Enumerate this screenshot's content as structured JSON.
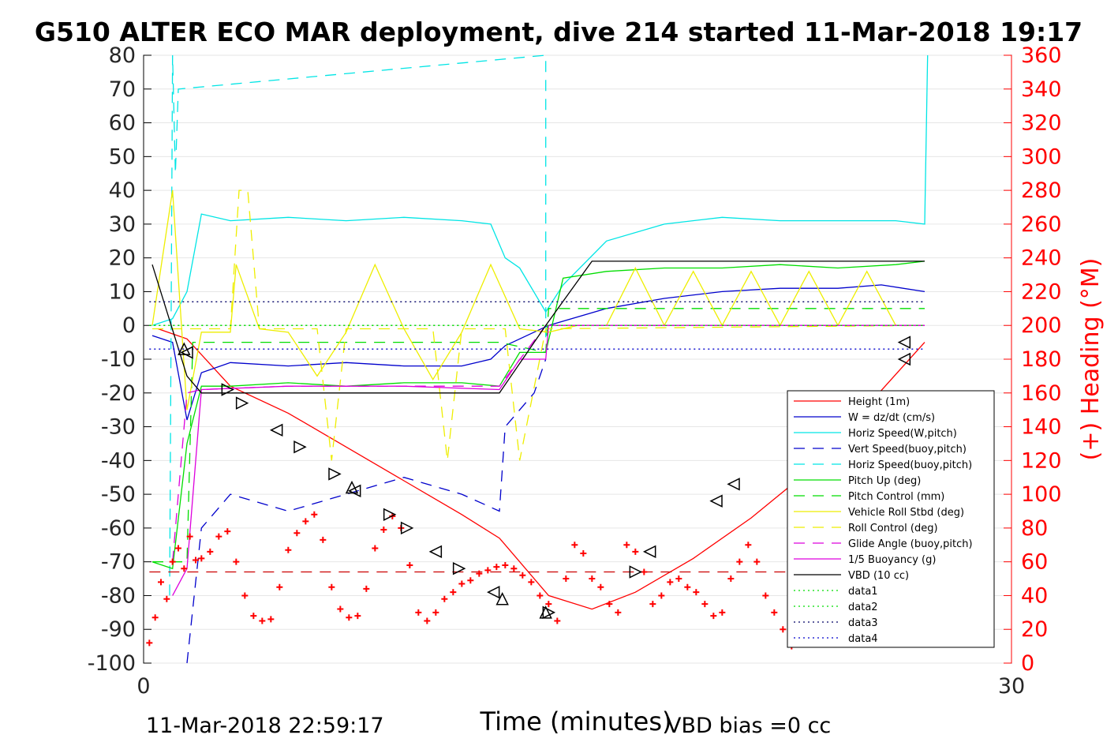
{
  "chart_data": {
    "type": "line",
    "title": "G510 ALTER ECO MAR deployment, dive 214 started 11-Mar-2018 19:17",
    "xlabel": "Time (minutes)",
    "ylabel": "",
    "ylabel_right": "(+) Heading (°M)",
    "xlim": [
      0,
      30
    ],
    "ylim": [
      -100,
      80
    ],
    "ylim_right": [
      0,
      360
    ],
    "x_ticks": [
      "0",
      "30"
    ],
    "y_ticks": [
      "80",
      "70",
      "60",
      "50",
      "40",
      "30",
      "20",
      "10",
      "0",
      "-10",
      "-20",
      "-30",
      "-40",
      "-50",
      "-60",
      "-70",
      "-80",
      "-90",
      "-100"
    ],
    "y_right_ticks": [
      "360",
      "340",
      "320",
      "300",
      "280",
      "260",
      "240",
      "220",
      "200",
      "180",
      "160",
      "140",
      "120",
      "100",
      "80",
      "60",
      "40",
      "20",
      "0"
    ],
    "grid": true,
    "legend_position": "bottom-right",
    "footer_left": "11-Mar-2018 22:59:17",
    "footer_right": "VBD bias =0 cc",
    "legend": [
      {
        "label": "Height (1m)",
        "color": "#ff0000",
        "style": "solid"
      },
      {
        "label": "W = dz/dt (cm/s)",
        "color": "#0000cc",
        "style": "solid"
      },
      {
        "label": "Horiz Speed(W,pitch)",
        "color": "#00e5e5",
        "style": "solid"
      },
      {
        "label": "Vert Speed(buoy,pitch)",
        "color": "#0000cc",
        "style": "dashed"
      },
      {
        "label": "Horiz Speed(buoy,pitch)",
        "color": "#00e5e5",
        "style": "dashed"
      },
      {
        "label": "Pitch Up (deg)",
        "color": "#00dd00",
        "style": "solid"
      },
      {
        "label": "Pitch Control (mm)",
        "color": "#00dd00",
        "style": "dashed"
      },
      {
        "label": "Vehicle Roll Stbd (deg)",
        "color": "#eeee00",
        "style": "solid"
      },
      {
        "label": "Roll Control (deg)",
        "color": "#eeee00",
        "style": "dashed"
      },
      {
        "label": "Glide Angle (buoy,pitch)",
        "color": "#dd00dd",
        "style": "dashed"
      },
      {
        "label": "1/5 Buoyancy (g)",
        "color": "#dd00dd",
        "style": "solid"
      },
      {
        "label": "VBD (10 cc)",
        "color": "#000000",
        "style": "solid"
      },
      {
        "label": "data1",
        "color": "#00dd00",
        "style": "dotted"
      },
      {
        "label": "data2",
        "color": "#00dd00",
        "style": "dotted"
      },
      {
        "label": "data3",
        "color": "#000066",
        "style": "dotted"
      },
      {
        "label": "data4",
        "color": "#0000cc",
        "style": "dotted"
      }
    ],
    "series": [
      {
        "name": "Height (1m)",
        "x": [
          0.5,
          1.5,
          3,
          5,
          7,
          9,
          11,
          12.3,
          14,
          15.5,
          17,
          19,
          21,
          23,
          25,
          27
        ],
        "y": [
          -1,
          -4,
          -18,
          -26,
          -36,
          -46,
          -56,
          -63,
          -80,
          -84,
          -79,
          -69,
          -57,
          -43,
          -24,
          -5
        ]
      },
      {
        "name": "W = dz/dt (cm/s)",
        "x": [
          0.3,
          1,
          1.5,
          2,
          3,
          5,
          7,
          9,
          11,
          12,
          12.5,
          13,
          14,
          16,
          18,
          20,
          22,
          24,
          25.5,
          27
        ],
        "y": [
          -3,
          -5,
          -28,
          -14,
          -11,
          -12,
          -11,
          -12,
          -12,
          -10,
          -6,
          -4,
          0,
          5,
          8,
          10,
          11,
          11,
          12,
          10
        ]
      },
      {
        "name": "Horiz Speed(W,pitch)",
        "x": [
          0.3,
          1,
          1.5,
          2,
          3,
          5,
          7,
          9,
          11,
          12,
          12.5,
          13,
          13.9,
          14.5,
          16,
          18,
          20,
          22,
          24,
          26,
          27,
          27.1
        ],
        "y": [
          0,
          2,
          10,
          33,
          31,
          32,
          31,
          32,
          31,
          30,
          20,
          17,
          4,
          12,
          25,
          30,
          32,
          31,
          31,
          31,
          30,
          80
        ]
      },
      {
        "name": "Vert Speed(buoy,pitch)",
        "x": [
          1.5,
          2,
          3,
          5,
          7,
          9,
          11,
          12.3,
          12.5,
          13.5,
          13.9
        ],
        "y": [
          -100,
          -60,
          -50,
          -55,
          -50,
          -45,
          -50,
          -55,
          -30,
          -20,
          -10
        ]
      },
      {
        "name": "Horiz Speed(buoy,pitch)",
        "x": [
          0.9,
          1.0,
          1.1,
          1.2,
          13.9,
          13.9
        ],
        "y": [
          -80,
          80,
          45,
          70,
          80,
          -5
        ]
      },
      {
        "name": "Pitch Up (deg)",
        "x": [
          0.3,
          1,
          1.5,
          2,
          3,
          5,
          7,
          9,
          11,
          12.3,
          13,
          13.9,
          14.5,
          16,
          18,
          20,
          22,
          24,
          26,
          27
        ],
        "y": [
          -70,
          -72,
          -35,
          -18,
          -18,
          -17,
          -18,
          -17,
          -17,
          -18,
          -8,
          -8,
          14,
          16,
          17,
          17,
          18,
          17,
          18,
          19
        ]
      },
      {
        "name": "Pitch Control (mm)",
        "x": [
          0.3,
          1.5,
          1.7,
          3,
          12.3,
          13.9,
          14,
          27
        ],
        "y": [
          -70,
          -70,
          -5,
          -5,
          -5,
          -8,
          5,
          5
        ]
      },
      {
        "name": "Vehicle Roll Stbd (deg)",
        "x": [
          0.3,
          1,
          1.5,
          2,
          2.7,
          3,
          3.2,
          4,
          5,
          6,
          7,
          8,
          9,
          10,
          11,
          12,
          13,
          14,
          15,
          16,
          17,
          18,
          19,
          20,
          21,
          22,
          23,
          24,
          25,
          26,
          27
        ],
        "y": [
          0,
          40,
          -25,
          -2,
          -2,
          -2,
          18,
          -1,
          -2,
          -15,
          -2,
          18,
          -1,
          -16,
          -2,
          18,
          -1,
          -2,
          0,
          0,
          17,
          0,
          16,
          0,
          16,
          0,
          16,
          0,
          16,
          0,
          0
        ]
      },
      {
        "name": "Roll Control (deg)",
        "x": [
          0.3,
          3,
          3.3,
          3.6,
          4,
          6,
          6.5,
          7,
          10,
          10.5,
          11,
          12.5,
          13,
          13.9,
          27
        ],
        "y": [
          -1,
          -1,
          40,
          40,
          -1,
          -1,
          -40,
          -1,
          -1,
          -40,
          -1,
          -1,
          -40,
          -1,
          0
        ]
      },
      {
        "name": "Glide Angle (buoy,pitch)",
        "x": [
          1,
          1.5,
          2,
          5,
          9,
          12.3,
          13.9,
          27
        ],
        "y": [
          -70,
          -20,
          -19,
          -18,
          -18,
          -18,
          0,
          0
        ]
      },
      {
        "name": "1/5 Buoyancy (g)",
        "x": [
          1,
          1.5,
          2,
          5,
          9,
          12.3,
          13,
          13.9,
          14,
          27
        ],
        "y": [
          -80,
          -72,
          -19,
          -18,
          -18,
          -19,
          -10,
          -10,
          0,
          0
        ]
      },
      {
        "name": "VBD (10 cc)",
        "x": [
          0.3,
          1.5,
          2,
          5,
          12.3,
          13.9,
          15.5,
          27
        ],
        "y": [
          18,
          -15,
          -20,
          -20,
          -20,
          0,
          19,
          19
        ]
      },
      {
        "name": "data1",
        "x": [
          0.2,
          27
        ],
        "y": [
          0,
          0
        ]
      },
      {
        "name": "data2",
        "x": [
          0.2,
          27
        ],
        "y": [
          0,
          0
        ]
      },
      {
        "name": "data3",
        "x": [
          0.2,
          27
        ],
        "y": [
          7,
          7
        ]
      },
      {
        "name": "data4",
        "x": [
          0.2,
          27
        ],
        "y": [
          -7,
          -7
        ]
      }
    ],
    "heading_markers": {
      "name": "(+) Heading (°M)",
      "color": "#ff0000",
      "x": [
        0.2,
        0.4,
        0.6,
        0.8,
        1.0,
        1.2,
        1.4,
        1.6,
        1.8,
        2,
        2.3,
        2.6,
        2.9,
        3.2,
        3.5,
        3.8,
        4.1,
        4.4,
        4.7,
        5.0,
        5.3,
        5.6,
        5.9,
        6.2,
        6.5,
        6.8,
        7.1,
        7.4,
        7.7,
        8.0,
        8.3,
        8.6,
        8.9,
        9.2,
        9.5,
        9.8,
        10.1,
        10.4,
        10.7,
        11.0,
        11.3,
        11.6,
        11.9,
        12.2,
        12.5,
        12.8,
        13.1,
        13.4,
        13.7,
        14.0,
        14.3,
        14.6,
        14.9,
        15.2,
        15.5,
        15.8,
        16.1,
        16.4,
        16.7,
        17.0,
        17.3,
        17.6,
        17.9,
        18.2,
        18.5,
        18.8,
        19.1,
        19.4,
        19.7,
        20.0,
        20.3,
        20.6,
        20.9,
        21.2,
        21.5,
        21.8,
        22.1,
        22.4
      ],
      "y": [
        12,
        27,
        48,
        38,
        60,
        68,
        56,
        75,
        61,
        62,
        66,
        75,
        78,
        60,
        40,
        28,
        25,
        26,
        45,
        67,
        77,
        84,
        88,
        73,
        45,
        32,
        27,
        28,
        44,
        68,
        79,
        87,
        80,
        58,
        30,
        25,
        30,
        38,
        42,
        47,
        49,
        53,
        55,
        57,
        58,
        56,
        52,
        48,
        40,
        35,
        25,
        50,
        70,
        65,
        50,
        45,
        35,
        30,
        70,
        66,
        54,
        35,
        40,
        48,
        50,
        45,
        42,
        35,
        28,
        30,
        50,
        60,
        70,
        60,
        40,
        30,
        20,
        10
      ]
    },
    "vbd_dashed_line": {
      "color": "#cc0000",
      "y": -73
    },
    "triangles": {
      "color": "#000000",
      "points": [
        {
          "x": 1.4,
          "y": -7,
          "dir": "up"
        },
        {
          "x": 1.5,
          "y": -8,
          "dir": "left"
        },
        {
          "x": 2.9,
          "y": -19,
          "dir": "right"
        },
        {
          "x": 3.4,
          "y": -23,
          "dir": "right"
        },
        {
          "x": 4.6,
          "y": -31,
          "dir": "left"
        },
        {
          "x": 5.4,
          "y": -36,
          "dir": "right"
        },
        {
          "x": 6.6,
          "y": -44,
          "dir": "right"
        },
        {
          "x": 7.2,
          "y": -48,
          "dir": "up"
        },
        {
          "x": 7.3,
          "y": -49,
          "dir": "left"
        },
        {
          "x": 8.5,
          "y": -56,
          "dir": "right"
        },
        {
          "x": 9.1,
          "y": -60,
          "dir": "right"
        },
        {
          "x": 10.1,
          "y": -67,
          "dir": "left"
        },
        {
          "x": 10.9,
          "y": -72,
          "dir": "right"
        },
        {
          "x": 12.1,
          "y": -79,
          "dir": "left"
        },
        {
          "x": 12.4,
          "y": -81,
          "dir": "up"
        },
        {
          "x": 13.9,
          "y": -85,
          "dir": "up"
        },
        {
          "x": 14.0,
          "y": -85,
          "dir": "right"
        },
        {
          "x": 17.0,
          "y": -73,
          "dir": "right"
        },
        {
          "x": 17.5,
          "y": -67,
          "dir": "left"
        },
        {
          "x": 19.8,
          "y": -52,
          "dir": "left"
        },
        {
          "x": 20.4,
          "y": -47,
          "dir": "left"
        },
        {
          "x": 26.3,
          "y": -10,
          "dir": "left"
        },
        {
          "x": 26.3,
          "y": -5,
          "dir": "left"
        }
      ]
    }
  }
}
